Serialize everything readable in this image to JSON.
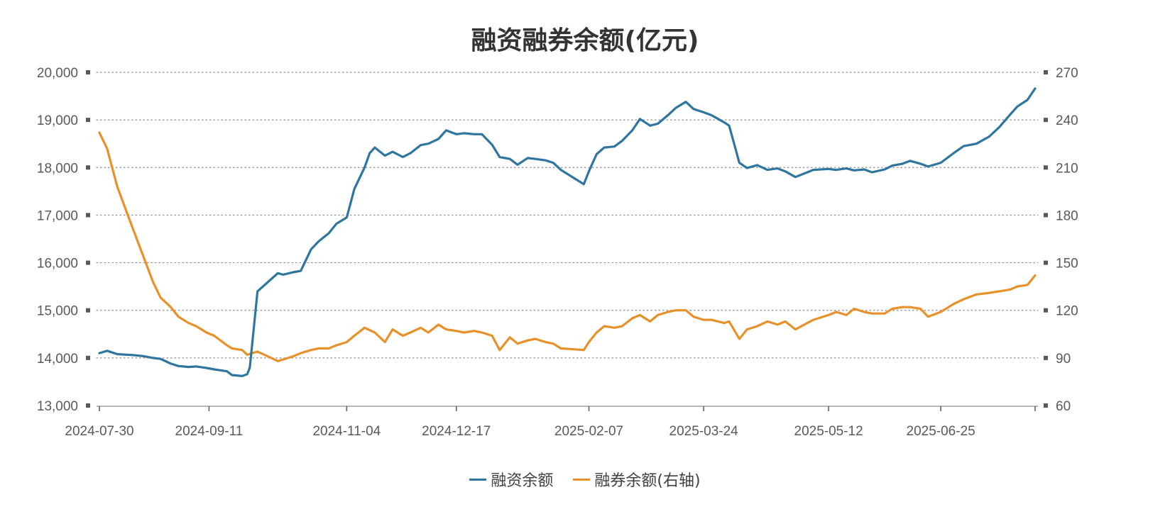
{
  "chart_data": {
    "type": "line",
    "title": "融资融券余额(亿元)",
    "x_tick_labels": [
      "2024-07-30",
      "2024-09-11",
      "2024-11-04",
      "2024-12-17",
      "2025-02-07",
      "2025-03-24",
      "2025-05-12",
      "2025-06-25"
    ],
    "y_left": {
      "range": [
        13000,
        20000
      ],
      "ticks": [
        "13,000",
        "14,000",
        "15,000",
        "16,000",
        "17,000",
        "18,000",
        "19,000",
        "20,000"
      ]
    },
    "y_right": {
      "range": [
        60,
        270
      ],
      "ticks": [
        "60",
        "90",
        "120",
        "150",
        "180",
        "210",
        "240",
        "270"
      ]
    },
    "grid": "horizontal dotted",
    "legend_position": "bottom",
    "series": [
      {
        "name": "融资余额",
        "axis": "left",
        "color": "#2E75A0",
        "points": [
          [
            "2024-07-30",
            14100
          ],
          [
            "2024-08-02",
            14150
          ],
          [
            "2024-08-06",
            14080
          ],
          [
            "2024-08-12",
            14060
          ],
          [
            "2024-08-16",
            14040
          ],
          [
            "2024-08-20",
            14000
          ],
          [
            "2024-08-23",
            13980
          ],
          [
            "2024-08-27",
            13880
          ],
          [
            "2024-08-30",
            13830
          ],
          [
            "2024-09-03",
            13810
          ],
          [
            "2024-09-06",
            13820
          ],
          [
            "2024-09-10",
            13790
          ],
          [
            "2024-09-13",
            13760
          ],
          [
            "2024-09-18",
            13720
          ],
          [
            "2024-09-20",
            13640
          ],
          [
            "2024-09-24",
            13620
          ],
          [
            "2024-09-26",
            13660
          ],
          [
            "2024-09-27",
            13800
          ],
          [
            "2024-09-30",
            15400
          ],
          [
            "2024-10-08",
            15780
          ],
          [
            "2024-10-10",
            15750
          ],
          [
            "2024-10-14",
            15800
          ],
          [
            "2024-10-17",
            15830
          ],
          [
            "2024-10-21",
            16280
          ],
          [
            "2024-10-24",
            16450
          ],
          [
            "2024-10-28",
            16620
          ],
          [
            "2024-10-31",
            16820
          ],
          [
            "2024-11-04",
            16950
          ],
          [
            "2024-11-07",
            17550
          ],
          [
            "2024-11-11",
            18000
          ],
          [
            "2024-11-13",
            18300
          ],
          [
            "2024-11-15",
            18420
          ],
          [
            "2024-11-19",
            18250
          ],
          [
            "2024-11-22",
            18330
          ],
          [
            "2024-11-26",
            18220
          ],
          [
            "2024-11-29",
            18300
          ],
          [
            "2024-12-03",
            18470
          ],
          [
            "2024-12-06",
            18500
          ],
          [
            "2024-12-10",
            18600
          ],
          [
            "2024-12-13",
            18780
          ],
          [
            "2024-12-17",
            18700
          ],
          [
            "2024-12-20",
            18720
          ],
          [
            "2024-12-24",
            18700
          ],
          [
            "2024-12-27",
            18700
          ],
          [
            "2024-12-31",
            18480
          ],
          [
            "2025-01-03",
            18220
          ],
          [
            "2025-01-07",
            18180
          ],
          [
            "2025-01-10",
            18060
          ],
          [
            "2025-01-14",
            18200
          ],
          [
            "2025-01-17",
            18180
          ],
          [
            "2025-01-21",
            18150
          ],
          [
            "2025-01-24",
            18100
          ],
          [
            "2025-01-27",
            17950
          ],
          [
            "2025-02-05",
            17650
          ],
          [
            "2025-02-07",
            17920
          ],
          [
            "2025-02-10",
            18280
          ],
          [
            "2025-02-13",
            18420
          ],
          [
            "2025-02-17",
            18440
          ],
          [
            "2025-02-20",
            18560
          ],
          [
            "2025-02-24",
            18780
          ],
          [
            "2025-02-27",
            19020
          ],
          [
            "2025-03-03",
            18880
          ],
          [
            "2025-03-06",
            18920
          ],
          [
            "2025-03-10",
            19100
          ],
          [
            "2025-03-13",
            19250
          ],
          [
            "2025-03-17",
            19380
          ],
          [
            "2025-03-20",
            19230
          ],
          [
            "2025-03-24",
            19160
          ],
          [
            "2025-03-27",
            19100
          ],
          [
            "2025-04-01",
            18950
          ],
          [
            "2025-04-03",
            18880
          ],
          [
            "2025-04-07",
            18100
          ],
          [
            "2025-04-10",
            17990
          ],
          [
            "2025-04-14",
            18050
          ],
          [
            "2025-04-18",
            17950
          ],
          [
            "2025-04-22",
            17980
          ],
          [
            "2025-04-25",
            17920
          ],
          [
            "2025-04-29",
            17800
          ],
          [
            "2025-05-06",
            17950
          ],
          [
            "2025-05-12",
            17970
          ],
          [
            "2025-05-15",
            17950
          ],
          [
            "2025-05-19",
            17980
          ],
          [
            "2025-05-22",
            17940
          ],
          [
            "2025-05-26",
            17960
          ],
          [
            "2025-05-29",
            17900
          ],
          [
            "2025-06-03",
            17960
          ],
          [
            "2025-06-06",
            18040
          ],
          [
            "2025-06-10",
            18080
          ],
          [
            "2025-06-13",
            18140
          ],
          [
            "2025-06-17",
            18080
          ],
          [
            "2025-06-20",
            18020
          ],
          [
            "2025-06-25",
            18100
          ],
          [
            "2025-06-30",
            18300
          ],
          [
            "2025-07-04",
            18450
          ],
          [
            "2025-07-09",
            18500
          ],
          [
            "2025-07-14",
            18650
          ],
          [
            "2025-07-18",
            18850
          ],
          [
            "2025-07-22",
            19100
          ],
          [
            "2025-07-25",
            19280
          ],
          [
            "2025-07-29",
            19420
          ],
          [
            "2025-08-01",
            19660
          ]
        ]
      },
      {
        "name": "融券余额(右轴)",
        "axis": "right",
        "color": "#E8912B",
        "points": [
          [
            "2024-07-30",
            232
          ],
          [
            "2024-08-02",
            222
          ],
          [
            "2024-08-06",
            198
          ],
          [
            "2024-08-12",
            172
          ],
          [
            "2024-08-16",
            155
          ],
          [
            "2024-08-20",
            138
          ],
          [
            "2024-08-23",
            128
          ],
          [
            "2024-08-27",
            122
          ],
          [
            "2024-08-30",
            116
          ],
          [
            "2024-09-03",
            112
          ],
          [
            "2024-09-06",
            110
          ],
          [
            "2024-09-10",
            106
          ],
          [
            "2024-09-13",
            104
          ],
          [
            "2024-09-18",
            98
          ],
          [
            "2024-09-20",
            96
          ],
          [
            "2024-09-24",
            95
          ],
          [
            "2024-09-26",
            92
          ],
          [
            "2024-09-30",
            94
          ],
          [
            "2024-10-08",
            88
          ],
          [
            "2024-10-10",
            89
          ],
          [
            "2024-10-14",
            91
          ],
          [
            "2024-10-17",
            93
          ],
          [
            "2024-10-21",
            95
          ],
          [
            "2024-10-24",
            96
          ],
          [
            "2024-10-28",
            96
          ],
          [
            "2024-10-31",
            98
          ],
          [
            "2024-11-04",
            100
          ],
          [
            "2024-11-07",
            104
          ],
          [
            "2024-11-11",
            109
          ],
          [
            "2024-11-15",
            106
          ],
          [
            "2024-11-19",
            100
          ],
          [
            "2024-11-22",
            108
          ],
          [
            "2024-11-26",
            104
          ],
          [
            "2024-11-29",
            106
          ],
          [
            "2024-12-03",
            109
          ],
          [
            "2024-12-06",
            106
          ],
          [
            "2024-12-10",
            111
          ],
          [
            "2024-12-13",
            108
          ],
          [
            "2024-12-17",
            107
          ],
          [
            "2024-12-20",
            106
          ],
          [
            "2024-12-24",
            107
          ],
          [
            "2024-12-27",
            106
          ],
          [
            "2024-12-31",
            104
          ],
          [
            "2025-01-03",
            95
          ],
          [
            "2025-01-07",
            103
          ],
          [
            "2025-01-10",
            99
          ],
          [
            "2025-01-14",
            101
          ],
          [
            "2025-01-17",
            102
          ],
          [
            "2025-01-21",
            100
          ],
          [
            "2025-01-24",
            99
          ],
          [
            "2025-01-27",
            96
          ],
          [
            "2025-02-05",
            95
          ],
          [
            "2025-02-07",
            100
          ],
          [
            "2025-02-10",
            106
          ],
          [
            "2025-02-13",
            110
          ],
          [
            "2025-02-17",
            109
          ],
          [
            "2025-02-20",
            110
          ],
          [
            "2025-02-24",
            115
          ],
          [
            "2025-02-27",
            117
          ],
          [
            "2025-03-03",
            113
          ],
          [
            "2025-03-06",
            117
          ],
          [
            "2025-03-10",
            119
          ],
          [
            "2025-03-13",
            120
          ],
          [
            "2025-03-17",
            120
          ],
          [
            "2025-03-20",
            116
          ],
          [
            "2025-03-24",
            114
          ],
          [
            "2025-03-27",
            114
          ],
          [
            "2025-04-01",
            112
          ],
          [
            "2025-04-03",
            113
          ],
          [
            "2025-04-07",
            102
          ],
          [
            "2025-04-10",
            108
          ],
          [
            "2025-04-14",
            110
          ],
          [
            "2025-04-18",
            113
          ],
          [
            "2025-04-22",
            111
          ],
          [
            "2025-04-25",
            113
          ],
          [
            "2025-04-29",
            108
          ],
          [
            "2025-05-06",
            114
          ],
          [
            "2025-05-12",
            117
          ],
          [
            "2025-05-15",
            119
          ],
          [
            "2025-05-19",
            117
          ],
          [
            "2025-05-22",
            121
          ],
          [
            "2025-05-26",
            119
          ],
          [
            "2025-05-29",
            118
          ],
          [
            "2025-06-03",
            118
          ],
          [
            "2025-06-06",
            121
          ],
          [
            "2025-06-10",
            122
          ],
          [
            "2025-06-13",
            122
          ],
          [
            "2025-06-17",
            121
          ],
          [
            "2025-06-20",
            116
          ],
          [
            "2025-06-25",
            119
          ],
          [
            "2025-06-30",
            124
          ],
          [
            "2025-07-04",
            127
          ],
          [
            "2025-07-09",
            130
          ],
          [
            "2025-07-14",
            131
          ],
          [
            "2025-07-18",
            132
          ],
          [
            "2025-07-22",
            133
          ],
          [
            "2025-07-25",
            135
          ],
          [
            "2025-07-29",
            136
          ],
          [
            "2025-08-01",
            142
          ]
        ]
      }
    ]
  }
}
